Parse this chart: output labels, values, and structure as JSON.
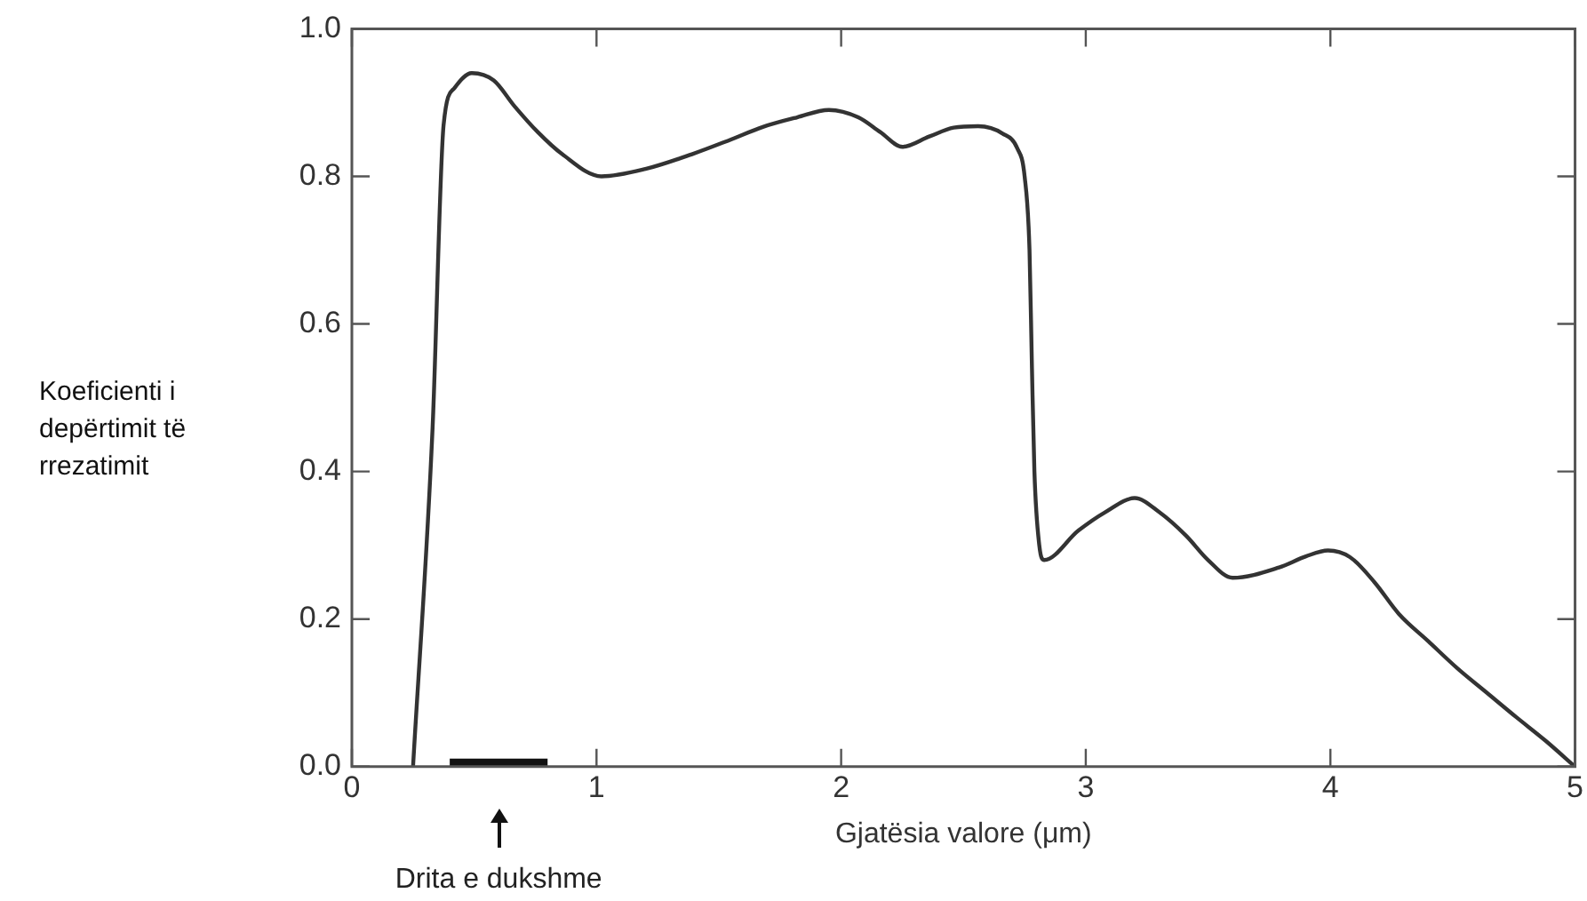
{
  "chart_data": {
    "type": "line",
    "xlabel": "Gjatësia valore (μm)",
    "ylabel": "Koeficienti i depërtimit të rrezatimit",
    "series": [
      {
        "color": "#333333",
        "x": [
          0.25,
          0.33,
          0.375,
          0.42,
          0.49,
          0.58,
          0.665,
          0.76,
          0.86,
          1.02,
          1.2,
          1.39,
          1.55,
          1.68,
          1.82,
          1.95,
          2.07,
          2.16,
          2.25,
          2.36,
          2.46,
          2.56,
          2.66,
          2.72,
          2.75,
          2.77,
          2.78,
          2.79,
          2.81,
          2.83,
          2.97,
          3.08,
          3.2,
          3.3,
          3.41,
          3.5,
          3.6,
          3.79,
          3.9,
          3.99,
          4.08,
          4.18,
          4.28,
          4.4,
          4.52,
          4.64,
          4.76,
          4.88,
          5.0
        ],
        "values": [
          0.0,
          0.46,
          0.87,
          0.92,
          0.94,
          0.93,
          0.895,
          0.86,
          0.83,
          0.8,
          0.81,
          0.83,
          0.85,
          0.867,
          0.88,
          0.89,
          0.88,
          0.86,
          0.84,
          0.854,
          0.866,
          0.868,
          0.858,
          0.838,
          0.8,
          0.7,
          0.54,
          0.4,
          0.3,
          0.28,
          0.32,
          0.345,
          0.364,
          0.345,
          0.313,
          0.28,
          0.256,
          0.27,
          0.285,
          0.293,
          0.284,
          0.25,
          0.207,
          0.17,
          0.133,
          0.1,
          0.067,
          0.035,
          0.0
        ]
      },
      {
        "color": "#111111",
        "x": [
          0.4,
          0.8
        ],
        "values": [
          0,
          0
        ]
      }
    ],
    "xlim": [
      0,
      5
    ],
    "xticks": [
      0,
      1,
      2,
      3,
      4,
      5
    ],
    "ylim": [
      0,
      1
    ],
    "yticks": [
      {
        "value": 0,
        "label": "0.0"
      },
      {
        "value": 0.2,
        "label": "0.2"
      },
      {
        "value": 0.4,
        "label": "0.4"
      },
      {
        "value": 0.6,
        "label": "0.6"
      },
      {
        "value": 0.8,
        "label": "0.8"
      },
      {
        "value": 1,
        "label": "1.0"
      }
    ],
    "annotations": [
      "Drita e dukshme"
    ],
    "grid": false,
    "legend": false,
    "marker": "none",
    "line_style": "solid"
  }
}
